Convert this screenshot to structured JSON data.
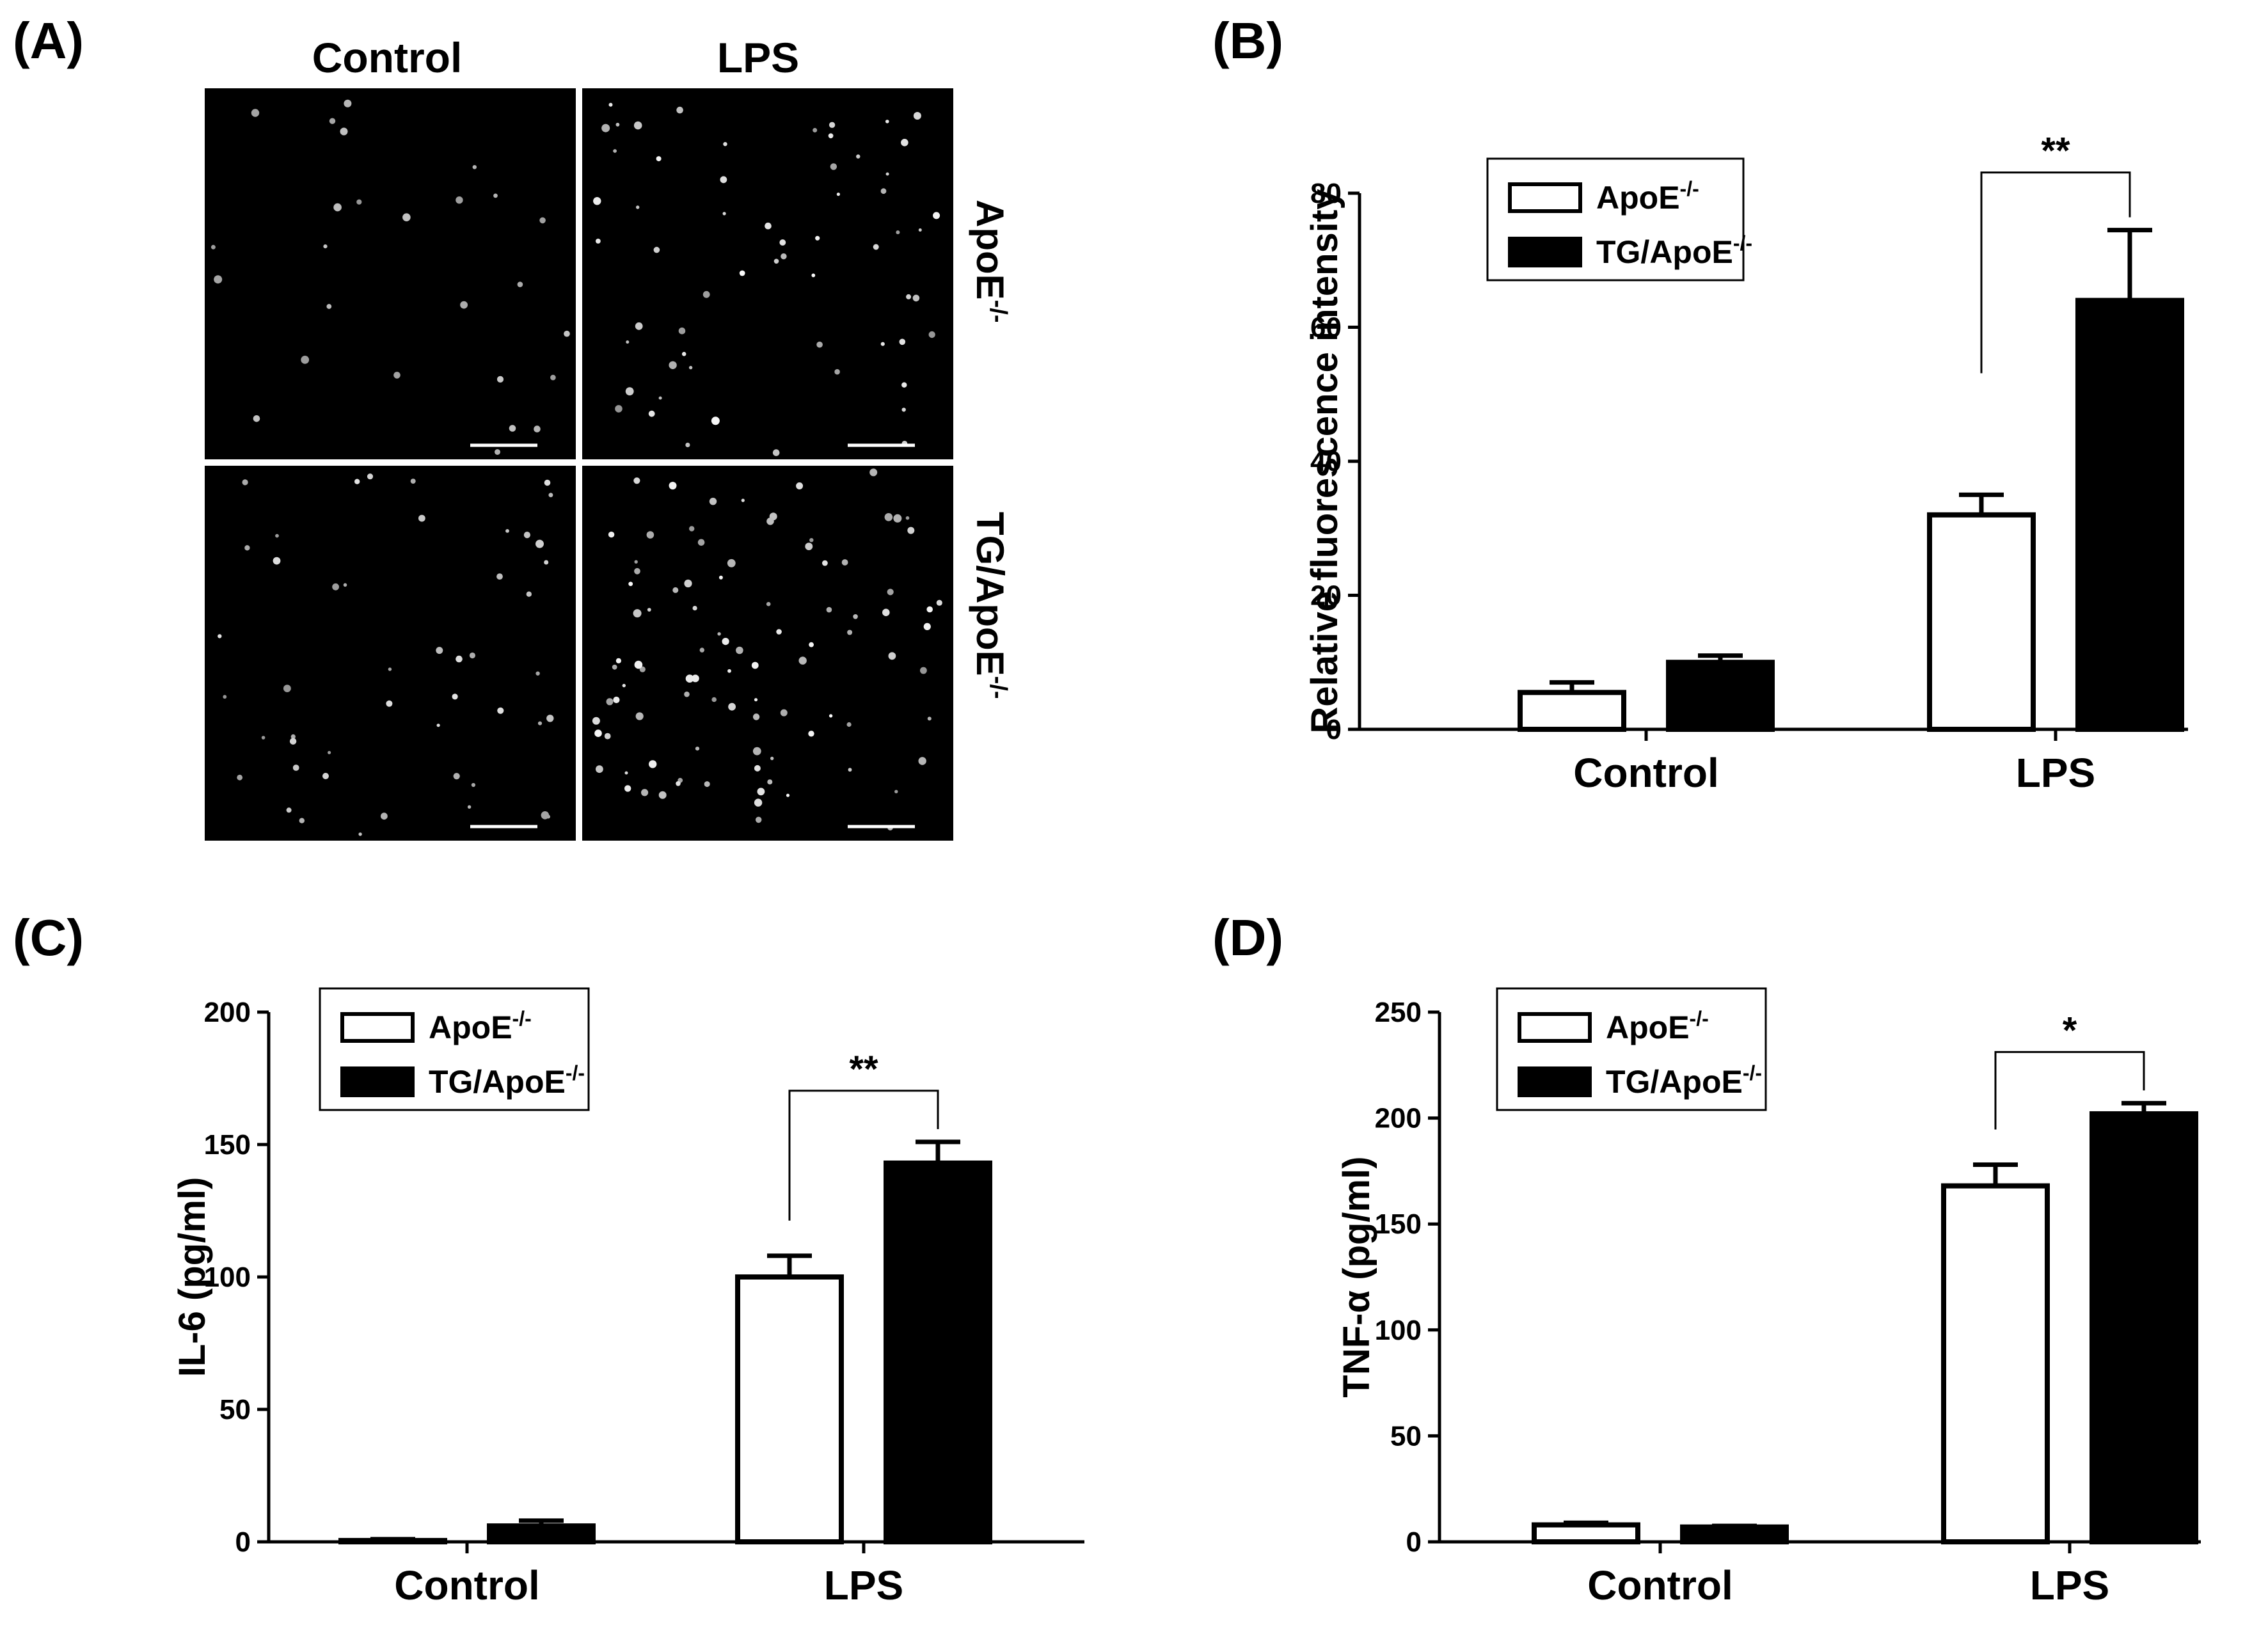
{
  "panels": {
    "a": {
      "letter": "(A)"
    },
    "b": {
      "letter": "(B)"
    },
    "c": {
      "letter": "(C)"
    },
    "d": {
      "letter": "(D)"
    }
  },
  "micrographs": {
    "column_labels": [
      "Control",
      "LPS"
    ],
    "row_labels": [
      {
        "base": "ApoE",
        "sup": "-/-"
      },
      {
        "base": "TG/ApoE",
        "sup": "-/-"
      }
    ]
  },
  "legend_entries": [
    {
      "base": "ApoE",
      "sup": "-/-",
      "fill": "#ffffff"
    },
    {
      "base": "TG/ApoE",
      "sup": "-/-",
      "fill": "#000000"
    }
  ],
  "chart_data": [
    {
      "id": "b",
      "type": "bar",
      "ylabel": "Relative fluorescence intensity",
      "categories": [
        "Control",
        "LPS"
      ],
      "ylim": [
        0,
        80
      ],
      "yticks": [
        0,
        20,
        40,
        60,
        80
      ],
      "series": [
        {
          "name": "ApoE-/-",
          "values": [
            5.5,
            32
          ],
          "errors": [
            1.5,
            3
          ]
        },
        {
          "name": "TG/ApoE-/-",
          "values": [
            10,
            64
          ],
          "errors": [
            1,
            10.5
          ]
        }
      ],
      "significance": [
        {
          "category": "LPS",
          "label": "**"
        }
      ]
    },
    {
      "id": "c",
      "type": "bar",
      "ylabel": "IL-6 (pg/ml)",
      "categories": [
        "Control",
        "LPS"
      ],
      "ylim": [
        0,
        200
      ],
      "yticks": [
        0,
        50,
        100,
        150,
        200
      ],
      "series": [
        {
          "name": "ApoE-/-",
          "values": [
            0.5,
            100
          ],
          "errors": [
            0.5,
            8
          ]
        },
        {
          "name": "TG/ApoE-/-",
          "values": [
            6,
            143
          ],
          "errors": [
            2,
            8
          ]
        }
      ],
      "significance": [
        {
          "category": "LPS",
          "label": "**"
        }
      ]
    },
    {
      "id": "d",
      "type": "bar",
      "ylabel": "TNF-α (pg/ml)",
      "categories": [
        "Control",
        "LPS"
      ],
      "ylim": [
        0,
        250
      ],
      "yticks": [
        0,
        50,
        100,
        150,
        200,
        250
      ],
      "series": [
        {
          "name": "ApoE-/-",
          "values": [
            8,
            168
          ],
          "errors": [
            1,
            10
          ]
        },
        {
          "name": "TG/ApoE-/-",
          "values": [
            7,
            202
          ],
          "errors": [
            0.5,
            5
          ]
        }
      ],
      "significance": [
        {
          "category": "LPS",
          "label": "*"
        }
      ]
    }
  ]
}
